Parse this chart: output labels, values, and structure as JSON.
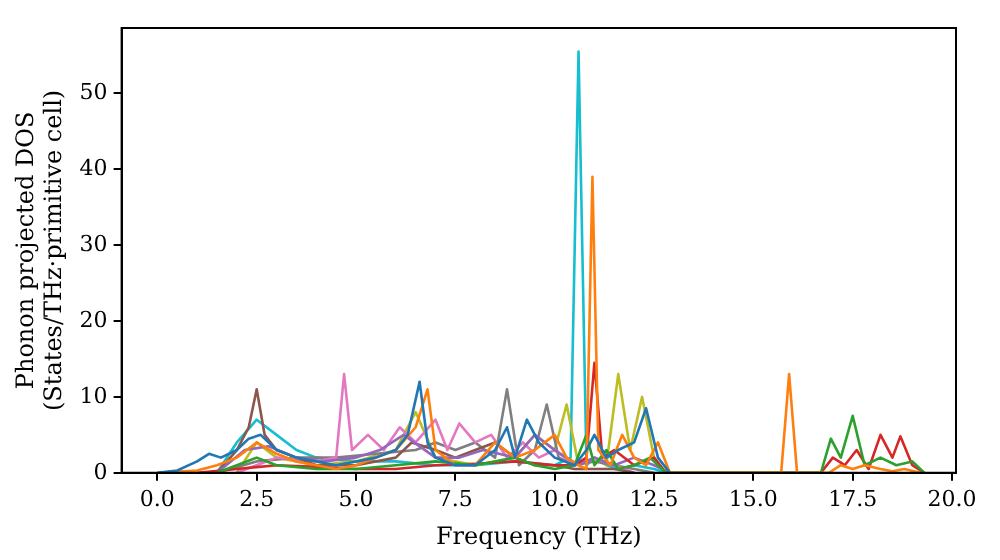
{
  "chart_data": {
    "type": "line",
    "xlabel": "Frequency (THz)",
    "ylabel": "Phonon projected DOS\n(States/THz·primitive cell)",
    "xlim": [
      -0.9,
      20.1
    ],
    "ylim": [
      0,
      58.6
    ],
    "xticks": [
      {
        "value": 0,
        "label": "0.0"
      },
      {
        "value": 2.5,
        "label": "2.5"
      },
      {
        "value": 5,
        "label": "5.0"
      },
      {
        "value": 7.5,
        "label": "7.5"
      },
      {
        "value": 10,
        "label": "10.0"
      },
      {
        "value": 12.5,
        "label": "12.5"
      },
      {
        "value": 15,
        "label": "15.0"
      },
      {
        "value": 17.5,
        "label": "17.5"
      },
      {
        "value": 20,
        "label": "20.0"
      }
    ],
    "yticks": [
      0,
      10,
      20,
      30,
      40,
      50
    ],
    "legend": false,
    "grid": false,
    "marker": "none",
    "line_style": "solid",
    "series": [
      {
        "color": "#1f77b4",
        "x": [
          0,
          0.5,
          1.0,
          1.3,
          1.6,
          2.0,
          2.3,
          2.6,
          3.0,
          3.5,
          4.0,
          4.5,
          5.0,
          5.5,
          6.0,
          6.3,
          6.6,
          6.8,
          7.0,
          7.5,
          8.0,
          8.5,
          8.8,
          9.0,
          9.3,
          9.6,
          10.0,
          10.5,
          10.8,
          11.0,
          11.3,
          11.6,
          12.0,
          12.3,
          12.6,
          12.9
        ],
        "values": [
          0,
          0.3,
          1.5,
          2.5,
          2,
          3,
          4.5,
          5,
          3,
          2,
          1.5,
          1,
          1.5,
          2,
          3,
          5,
          12,
          4,
          2,
          1,
          1,
          3,
          6,
          2,
          7,
          4,
          2,
          1,
          3,
          5,
          2,
          3,
          4,
          8.5,
          2,
          0
        ]
      },
      {
        "color": "#ff7f0e",
        "x": [
          0,
          1,
          1.5,
          2,
          2.5,
          3,
          3.5,
          4,
          4.5,
          5,
          5.5,
          6,
          6.5,
          6.8,
          7,
          7.5,
          8,
          8.5,
          9,
          9.5,
          10,
          10.3,
          10.6,
          10.8,
          10.95,
          11.1,
          11.4,
          11.7,
          12,
          12.3,
          12.6,
          12.9,
          15.7,
          15.9,
          16.1,
          16.9,
          17.2,
          17.5,
          17.8,
          18.2,
          18.5,
          18.8,
          19.2
        ],
        "values": [
          0,
          0.3,
          1,
          2,
          4,
          2.5,
          1.5,
          1,
          0.5,
          1,
          2,
          3,
          6,
          11,
          3,
          1,
          1,
          4,
          2,
          3,
          5,
          2,
          1,
          0.5,
          39,
          3,
          1,
          5,
          2,
          1,
          4,
          0,
          0,
          13,
          0,
          0,
          1,
          0.5,
          1,
          0.5,
          0.2,
          0.5,
          0
        ]
      },
      {
        "color": "#2ca02c",
        "x": [
          1.5,
          2,
          2.5,
          3,
          4,
          5,
          6,
          7,
          8,
          9,
          9.5,
          10,
          10.5,
          10.8,
          11,
          11.3,
          11.6,
          12,
          12.4,
          12.8,
          16.7,
          16.95,
          17.2,
          17.5,
          17.8,
          18.2,
          18.6,
          19,
          19.3
        ],
        "values": [
          0,
          1,
          2,
          1,
          0.5,
          0.5,
          1,
          1.5,
          1,
          2,
          1,
          0.5,
          1,
          5,
          1,
          3,
          0.5,
          1,
          2,
          0,
          0,
          4.5,
          2,
          7.5,
          1,
          2,
          1,
          1.5,
          0
        ]
      },
      {
        "color": "#d62728",
        "x": [
          1,
          2,
          3,
          4,
          5,
          6,
          7,
          8,
          9,
          10,
          10.5,
          10.8,
          11.0,
          11.2,
          11.5,
          12,
          12.5,
          12.8,
          16.7,
          17,
          17.3,
          17.6,
          17.9,
          18.2,
          18.5,
          18.7,
          19,
          19.3
        ],
        "values": [
          0,
          0.5,
          1,
          0.8,
          0.5,
          0.5,
          1,
          1.2,
          1.5,
          1,
          1,
          2,
          14.5,
          2,
          3,
          1,
          2,
          0,
          0,
          2,
          1,
          3,
          0.5,
          5,
          2,
          4.8,
          1,
          0
        ]
      },
      {
        "color": "#9467bd",
        "x": [
          1.5,
          2.2,
          2.8,
          3.5,
          4.2,
          5,
          5.6,
          6.2,
          7,
          7.6,
          8.2,
          9,
          9.5,
          10,
          10.6,
          11,
          11.5,
          12,
          12.5,
          12.9
        ],
        "values": [
          0,
          3,
          3.5,
          2,
          1.5,
          2,
          3,
          5,
          2,
          2,
          3,
          2,
          5,
          3,
          1,
          2,
          1,
          2,
          1,
          0
        ]
      },
      {
        "color": "#8c564b",
        "x": [
          1.5,
          2,
          2.3,
          2.5,
          2.7,
          3,
          3.5,
          4,
          5,
          6,
          6.4,
          7,
          7.5,
          8,
          8.5,
          9,
          9.5,
          10,
          10.5,
          11,
          11.5,
          12
        ],
        "values": [
          0,
          3,
          6,
          11,
          5,
          3,
          2,
          1,
          1,
          2,
          4,
          3,
          2,
          3,
          4,
          2,
          1,
          1,
          0.5,
          0.5,
          0.5,
          0
        ]
      },
      {
        "color": "#e377c2",
        "x": [
          2,
          3,
          4,
          4.5,
          4.7,
          4.9,
          5.3,
          5.7,
          6.1,
          6.5,
          7,
          7.3,
          7.6,
          8,
          8.4,
          8.8,
          9.2,
          9.6,
          10,
          10.5,
          11,
          11.5,
          12
        ],
        "values": [
          0,
          2,
          1.5,
          2,
          13,
          3,
          5,
          3,
          6,
          4,
          7,
          3,
          6.5,
          4,
          5,
          2,
          4,
          2,
          3,
          1,
          2,
          1,
          0
        ]
      },
      {
        "color": "#7f7f7f",
        "x": [
          1.5,
          2.5,
          3.5,
          4.5,
          5.5,
          6.5,
          7,
          7.5,
          8,
          8.5,
          8.8,
          9.1,
          9.5,
          9.8,
          10.1,
          10.5,
          11,
          11.5,
          12,
          12.5
        ],
        "values": [
          0,
          1.5,
          2,
          2,
          2.5,
          3,
          4,
          3,
          4,
          2,
          11,
          1,
          3,
          9,
          2,
          1,
          1.5,
          1,
          0.5,
          0
        ]
      },
      {
        "color": "#bcbd22",
        "x": [
          2,
          2.5,
          3,
          4,
          5,
          6,
          6.5,
          7,
          8,
          9,
          9.5,
          10,
          10.3,
          10.6,
          11,
          11.3,
          11.6,
          11.9,
          12.2,
          12.5,
          12.8
        ],
        "values": [
          0,
          4,
          2,
          1,
          1.5,
          3,
          8,
          2,
          1,
          2,
          5,
          3,
          9,
          1,
          2,
          1,
          13,
          3,
          10,
          2,
          0
        ]
      },
      {
        "color": "#17becf",
        "x": [
          1.5,
          2,
          2.5,
          3,
          3.5,
          4,
          5,
          6,
          7,
          8,
          9,
          10,
          10.4,
          10.6,
          10.8,
          11,
          11.3,
          11.6,
          12,
          12.5,
          12.8
        ],
        "values": [
          0,
          4,
          7,
          5,
          3,
          2,
          1.5,
          1.5,
          1,
          1,
          1.5,
          1,
          2,
          55.5,
          1,
          2,
          1,
          0.5,
          1,
          0.5,
          0
        ]
      }
    ]
  }
}
